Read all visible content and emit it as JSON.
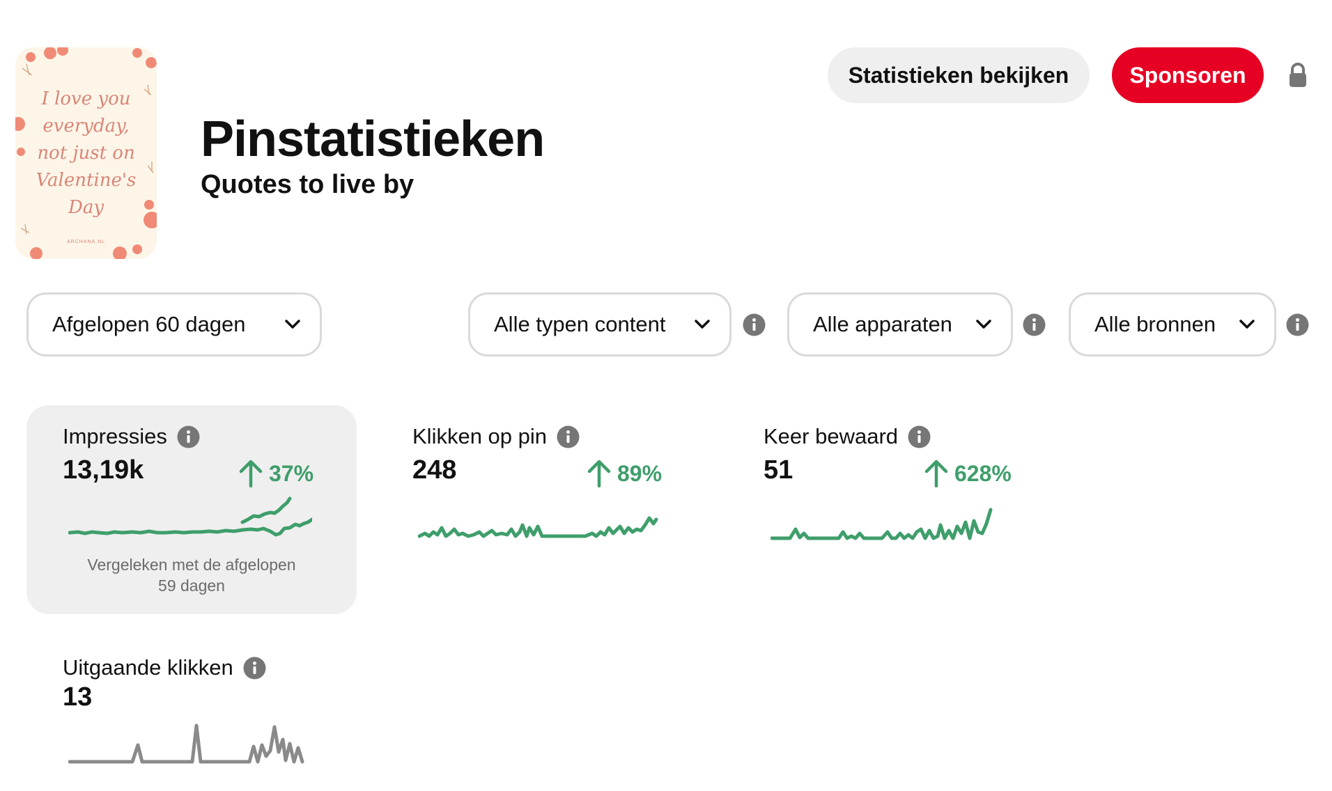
{
  "pin": {
    "quote_lines": [
      "I love you",
      "everyday,",
      "not just on",
      "Valentine's",
      "Day"
    ],
    "credit": "ARCHANA.NL",
    "accent_color": "#d98578"
  },
  "header": {
    "title": "Pinstatistieken",
    "subtitle": "Quotes to live by",
    "view_stats_label": "Statistieken bekijken",
    "sponsor_label": "Sponsoren",
    "lock_icon": "lock-icon"
  },
  "filters": {
    "date_range": "Afgelopen 60 dagen",
    "content_type": "Alle typen content",
    "devices": "Alle apparaten",
    "sources": "Alle bronnen"
  },
  "metrics": {
    "impressions": {
      "label": "Impressies",
      "value": "13,19k",
      "change": "37%",
      "direction": "up"
    },
    "pin_clicks": {
      "label": "Klikken op pin",
      "value": "248",
      "change": "89%",
      "direction": "up"
    },
    "saves": {
      "label": "Keer bewaard",
      "value": "51",
      "change": "628%",
      "direction": "up"
    },
    "outbound_clicks": {
      "label": "Uitgaande klikken",
      "value": "13"
    }
  },
  "comparison": [
    "Vergeleken met de afgelopen",
    "59 dagen"
  ],
  "colors": {
    "brand_red": "#e60023",
    "positive_green": "#3f9e6b",
    "neutral_gray": "#8a8a8a",
    "selected_card_bg": "#efefef"
  }
}
